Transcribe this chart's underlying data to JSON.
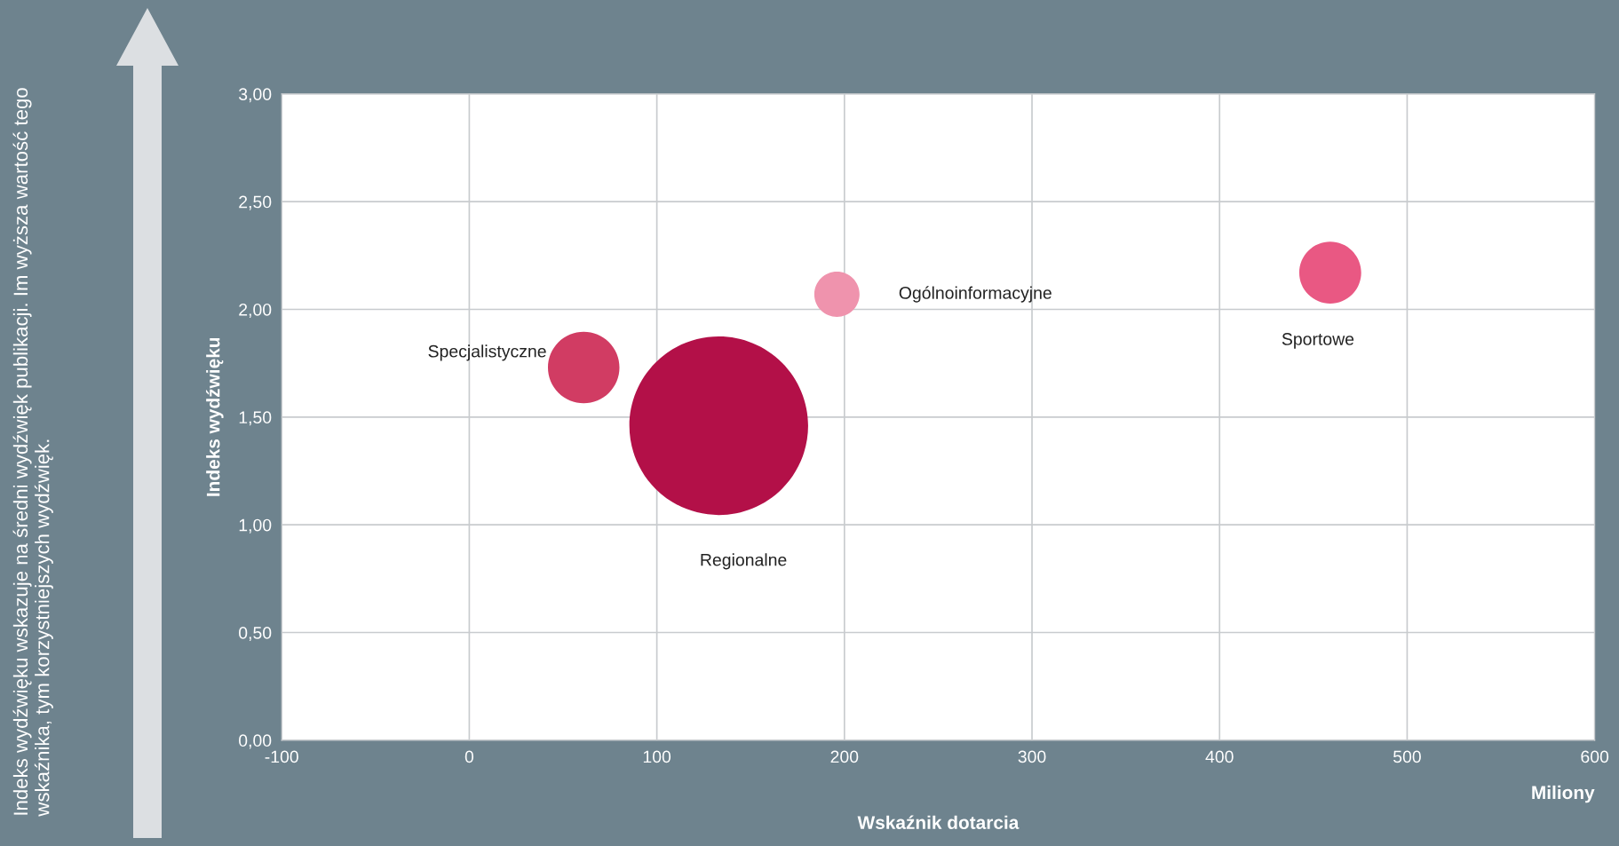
{
  "chart_data": {
    "type": "bubble",
    "xlabel": "Wskaźnik dotarcia",
    "ylabel": "Indeks wydźwięku",
    "annotations": [
      "Miliony",
      "Indeks wydźwięku wskazuje na średni wydźwięk publikacji. Im wyższa wartość tego wskaźnika, tym korzystniejszych wydźwięk."
    ],
    "series": [
      {
        "name": "Specjalistyczne",
        "color": "#d13c63",
        "x": [
          61
        ],
        "values": [
          1.73
        ],
        "sizes": [
          0.16
        ]
      },
      {
        "name": "Regionalne",
        "color": "#b31048",
        "x": [
          133
        ],
        "values": [
          1.46
        ],
        "sizes": [
          1
        ]
      },
      {
        "name": "Ogólnoinformacyjne",
        "color": "#ef93ad",
        "x": [
          196
        ],
        "values": [
          2.07
        ],
        "sizes": [
          0.064
        ]
      },
      {
        "name": "Sportowe",
        "color": "#e95883",
        "x": [
          459
        ],
        "values": [
          2.17
        ],
        "sizes": [
          0.12
        ]
      }
    ],
    "xlim": [
      -100,
      600
    ],
    "xticks": [
      -100,
      0,
      100,
      200,
      300,
      400,
      500,
      600
    ],
    "ylim": [
      0,
      3
    ],
    "yticks": [
      {
        "value": 0,
        "label": "0,00"
      },
      {
        "value": 0.5,
        "label": "0,50"
      },
      {
        "value": 1,
        "label": "1,00"
      },
      {
        "value": 1.5,
        "label": "1,50"
      },
      {
        "value": 2,
        "label": "2,00"
      },
      {
        "value": 2.5,
        "label": "2,50"
      },
      {
        "value": 3,
        "label": "3,00"
      }
    ],
    "grid": true,
    "legend": false
  }
}
